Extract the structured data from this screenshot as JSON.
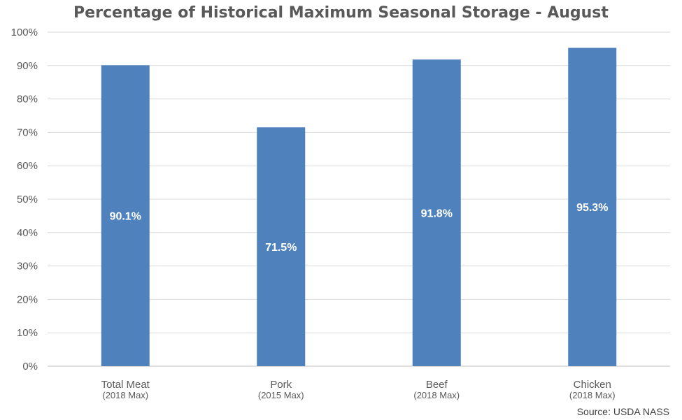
{
  "chart_data": {
    "type": "bar",
    "title": "Percentage of Historical Maximum Seasonal Storage - August",
    "categories": [
      "Total Meat",
      "Pork",
      "Beef",
      "Chicken"
    ],
    "category_sublabels": [
      "(2018 Max)",
      "(2015 Max)",
      "(2018 Max)",
      "(2018 Max)"
    ],
    "values": [
      90.1,
      71.5,
      91.8,
      95.3
    ],
    "data_labels": [
      "90.1%",
      "71.5%",
      "91.8%",
      "95.3%"
    ],
    "y_ticks": [
      "0%",
      "10%",
      "20%",
      "30%",
      "40%",
      "50%",
      "60%",
      "70%",
      "80%",
      "90%",
      "100%"
    ],
    "ylim": [
      0,
      100
    ],
    "grid": true,
    "legend": "none",
    "bar_color": "#4F81BD",
    "source": "Source: USDA NASS"
  }
}
